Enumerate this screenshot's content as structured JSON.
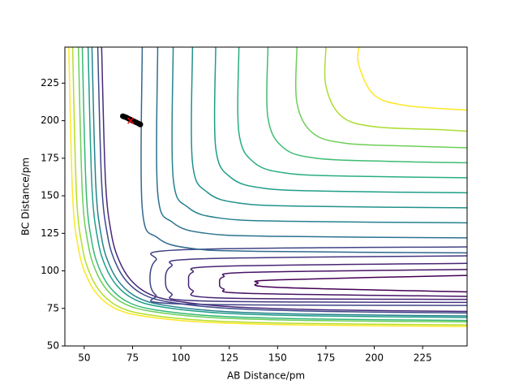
{
  "chart_data": {
    "type": "contour",
    "xlabel": "AB Distance/pm",
    "ylabel": "BC Distance/pm",
    "xlim": [
      40,
      248
    ],
    "xticks": [
      50,
      75,
      100,
      125,
      150,
      175,
      200,
      225
    ],
    "ylim": [
      50,
      249
    ],
    "yticks": [
      50,
      75,
      100,
      125,
      150,
      175,
      200,
      225
    ],
    "contours": [
      {
        "color": "#fde725",
        "x": [
          42,
          44,
          47,
          51,
          57,
          66,
          80,
          110,
          160,
          248
        ],
        "y": [
          249,
          150,
          115,
          97,
          84,
          75,
          70,
          66,
          64,
          63
        ]
      },
      {
        "color": "#b5de2b",
        "x": [
          44,
          46,
          49,
          53,
          59,
          68,
          82,
          112,
          162,
          248
        ],
        "y": [
          249,
          151,
          116,
          98,
          85,
          76,
          71,
          67,
          65,
          64
        ]
      },
      {
        "color": "#6ece58",
        "x": [
          47,
          49,
          52,
          56,
          62,
          71,
          85,
          115,
          165,
          248
        ],
        "y": [
          249,
          153,
          118,
          100,
          87,
          78,
          73,
          69,
          67,
          66
        ]
      },
      {
        "color": "#35b779",
        "x": [
          49,
          51,
          54,
          58,
          64,
          73,
          87,
          117,
          167,
          248
        ],
        "y": [
          249,
          154,
          119,
          101,
          88,
          79,
          74,
          70,
          68,
          67
        ]
      },
      {
        "color": "#1f9e89",
        "x": [
          52,
          54,
          57,
          61,
          67,
          76,
          90,
          120,
          170,
          248
        ],
        "y": [
          249,
          156,
          121,
          103,
          90,
          81,
          76,
          72,
          70,
          69
        ]
      },
      {
        "color": "#26828e",
        "x": [
          54,
          56,
          59,
          63,
          69,
          78,
          92,
          122,
          172,
          248
        ],
        "y": [
          249,
          157,
          122,
          104,
          91,
          82,
          77,
          73,
          71,
          70
        ]
      },
      {
        "color": "#3e4989",
        "x": [
          57,
          59,
          62,
          66,
          72,
          81,
          95,
          125,
          175,
          248
        ],
        "y": [
          249,
          159,
          124,
          106,
          93,
          84,
          79,
          75,
          73,
          72
        ]
      },
      {
        "color": "#482878",
        "x": [
          59,
          61,
          64,
          68,
          74,
          83,
          97,
          127,
          177,
          248
        ],
        "y": [
          249,
          160,
          125,
          107,
          94,
          85,
          80,
          76,
          74,
          73
        ]
      },
      {
        "color": "#440154",
        "x": [
          248,
          150,
          140,
          150,
          248
        ],
        "y": [
          97,
          94,
          92,
          89,
          86
        ]
      },
      {
        "color": "#471365",
        "x": [
          248,
          135,
          122,
          120,
          122,
          135,
          248
        ],
        "y": [
          101,
          99,
          96,
          92,
          88,
          85,
          83
        ]
      },
      {
        "color": "#482475",
        "x": [
          248,
          120,
          106,
          104,
          106,
          120,
          248
        ],
        "y": [
          105,
          103,
          99,
          93,
          87,
          82,
          81
        ]
      },
      {
        "color": "#463480",
        "x": [
          248,
          110,
          95,
          92,
          95,
          110,
          248
        ],
        "y": [
          110,
          108,
          103,
          94,
          85,
          80,
          79
        ]
      },
      {
        "color": "#414487",
        "x": [
          248,
          100,
          87,
          84,
          87,
          100,
          248
        ],
        "y": [
          116,
          114,
          107,
          95,
          84,
          78,
          77
        ]
      },
      {
        "color": "#31688e",
        "x": [
          80,
          80,
          88,
          105,
          140,
          248
        ],
        "y": [
          249,
          142,
          122,
          115,
          113,
          112
        ]
      },
      {
        "color": "#2c728e",
        "x": [
          88,
          88,
          96,
          113,
          148,
          248
        ],
        "y": [
          249,
          152,
          132,
          125,
          123,
          122
        ]
      },
      {
        "color": "#26828e",
        "x": [
          96,
          96,
          104,
          121,
          156,
          248
        ],
        "y": [
          249,
          162,
          142,
          135,
          133,
          132
        ]
      },
      {
        "color": "#21918c",
        "x": [
          106,
          106,
          114,
          131,
          166,
          248
        ],
        "y": [
          249,
          172,
          152,
          145,
          143,
          142
        ]
      },
      {
        "color": "#1f9e89",
        "x": [
          118,
          118,
          126,
          143,
          178,
          248
        ],
        "y": [
          249,
          182,
          162,
          155,
          153,
          152
        ]
      },
      {
        "color": "#28ae80",
        "x": [
          130,
          130,
          138,
          155,
          190,
          248
        ],
        "y": [
          249,
          192,
          172,
          165,
          163,
          162
        ]
      },
      {
        "color": "#3fbc73",
        "x": [
          145,
          145,
          153,
          170,
          205,
          248
        ],
        "y": [
          249,
          202,
          182,
          175,
          173,
          172
        ]
      },
      {
        "color": "#6ece58",
        "x": [
          160,
          160,
          168,
          185,
          220,
          248
        ],
        "y": [
          249,
          212,
          192,
          185,
          183,
          182
        ]
      },
      {
        "color": "#addc30",
        "x": [
          175,
          175,
          183,
          200,
          235,
          248
        ],
        "y": [
          249,
          223,
          203,
          196,
          194,
          193
        ]
      },
      {
        "color": "#fde725",
        "x": [
          192,
          192,
          200,
          217,
          248
        ],
        "y": [
          249,
          237,
          217,
          210,
          207
        ]
      }
    ],
    "trajectory": {
      "color": "#000000",
      "x": [
        70,
        71,
        72,
        73,
        74,
        75,
        76,
        77,
        78,
        79
      ],
      "y": [
        203,
        202.5,
        202,
        201.3,
        200.7,
        200,
        199.4,
        198.8,
        198.2,
        197.5
      ]
    },
    "marker": {
      "color": "#ff0000",
      "x": 74,
      "y": 200
    }
  }
}
